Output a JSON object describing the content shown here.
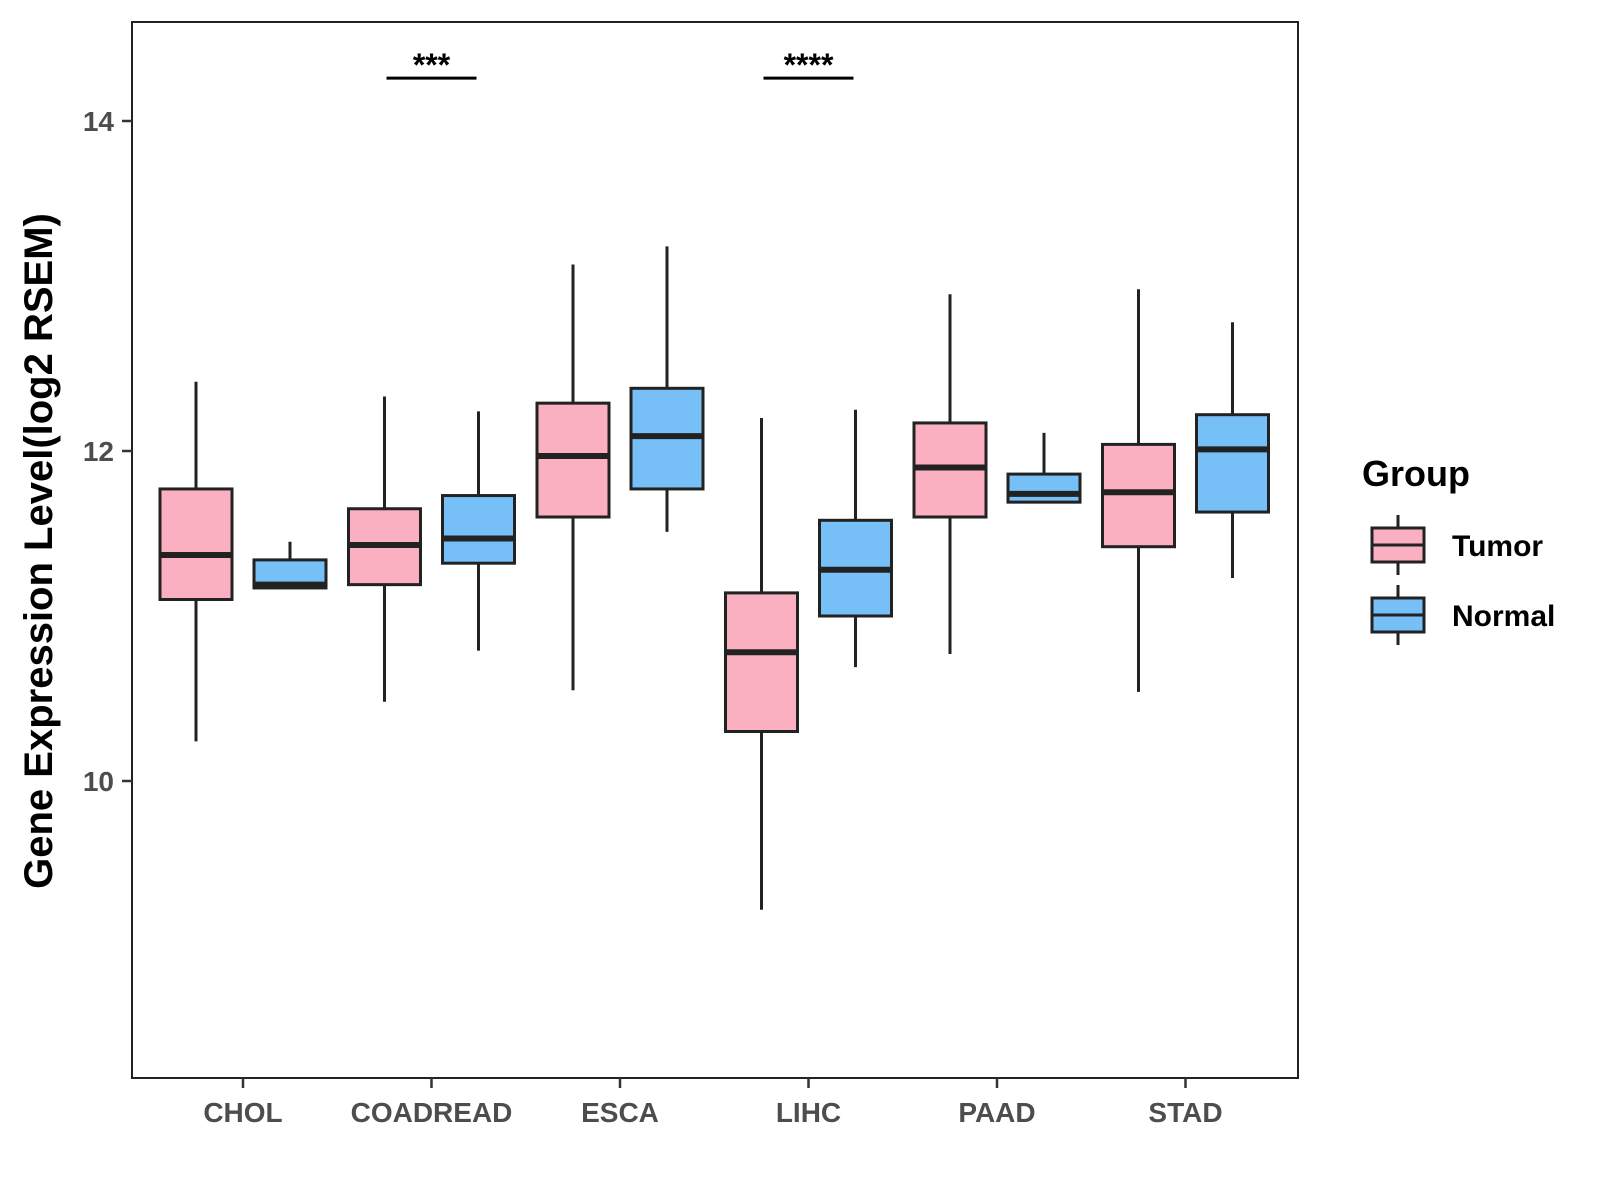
{
  "chart_data": {
    "type": "boxplot",
    "ylabel": "Gene Expression Level(log2 RSEM)",
    "xlabel": "",
    "ylim": [
      8.2,
      14.6
    ],
    "yticks": [
      10,
      12,
      14
    ],
    "ytick_labels": [
      "10",
      "12",
      "14"
    ],
    "categories": [
      "CHOL",
      "COADREAD",
      "ESCA",
      "LIHC",
      "PAAD",
      "STAD"
    ],
    "legend": {
      "title": "Group",
      "position": "right"
    },
    "series": [
      {
        "name": "Tumor",
        "color": "#fbb0c2",
        "boxes": [
          {
            "min": 10.24,
            "q1": 11.1,
            "median": 11.37,
            "q3": 11.77,
            "max": 12.42
          },
          {
            "min": 10.48,
            "q1": 11.19,
            "median": 11.43,
            "q3": 11.65,
            "max": 12.33
          },
          {
            "min": 10.55,
            "q1": 11.6,
            "median": 11.97,
            "q3": 12.29,
            "max": 13.13
          },
          {
            "min": 9.22,
            "q1": 10.3,
            "median": 10.78,
            "q3": 11.14,
            "max": 12.2
          },
          {
            "min": 10.77,
            "q1": 11.6,
            "median": 11.9,
            "q3": 12.17,
            "max": 12.95
          },
          {
            "min": 10.54,
            "q1": 11.42,
            "median": 11.75,
            "q3": 12.04,
            "max": 12.98
          }
        ]
      },
      {
        "name": "Normal",
        "color": "#77bff7",
        "boxes": [
          {
            "min": 11.17,
            "q1": 11.17,
            "median": 11.19,
            "q3": 11.34,
            "max": 11.45
          },
          {
            "min": 10.79,
            "q1": 11.32,
            "median": 11.47,
            "q3": 11.73,
            "max": 12.24
          },
          {
            "min": 11.51,
            "q1": 11.77,
            "median": 12.09,
            "q3": 12.38,
            "max": 13.24
          },
          {
            "min": 10.69,
            "q1": 11.0,
            "median": 11.28,
            "q3": 11.58,
            "max": 12.25
          },
          {
            "min": 11.69,
            "q1": 11.69,
            "median": 11.74,
            "q3": 11.86,
            "max": 12.11
          },
          {
            "min": 11.23,
            "q1": 11.63,
            "median": 12.01,
            "q3": 12.22,
            "max": 12.78
          }
        ]
      }
    ],
    "significance": [
      {
        "category": "COADREAD",
        "label": "***",
        "y": 14.26
      },
      {
        "category": "LIHC",
        "label": "****",
        "y": 14.26
      }
    ],
    "grid": false
  }
}
